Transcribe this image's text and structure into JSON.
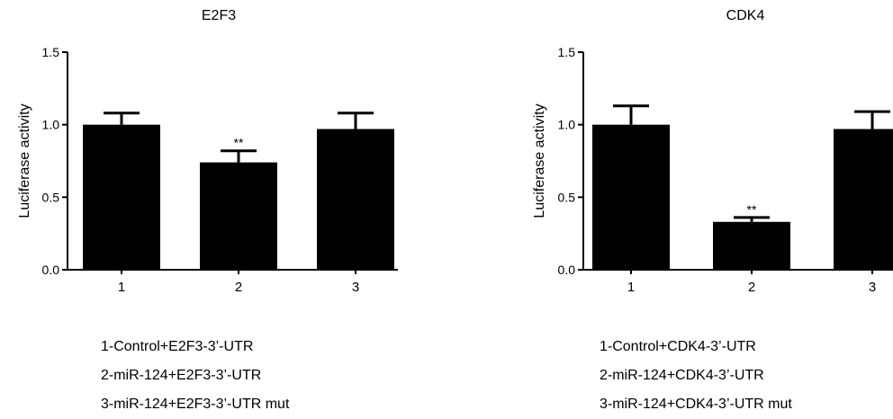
{
  "chart_data": [
    {
      "type": "bar",
      "title": "E2F3",
      "ylabel": "Luciferase activity",
      "xlabel": "",
      "ylim": [
        0,
        1.5
      ],
      "yticks": [
        "0.0",
        "0.5",
        "1.0",
        "1.5"
      ],
      "categories": [
        "1",
        "2",
        "3"
      ],
      "values": [
        1.0,
        0.74,
        0.97
      ],
      "errors": [
        0.08,
        0.08,
        0.11
      ],
      "annotations": [
        "",
        "**",
        ""
      ],
      "bar_color": "#000000",
      "legend": [
        "1-Control+E2F3-3’-UTR",
        "2-miR-124+E2F3-3’-UTR",
        "3-miR-124+E2F3-3’-UTR mut"
      ]
    },
    {
      "type": "bar",
      "title": "CDK4",
      "ylabel": "Luciferase activity",
      "xlabel": "",
      "ylim": [
        0,
        1.5
      ],
      "yticks": [
        "0.0",
        "0.5",
        "1.0",
        "1.5"
      ],
      "categories": [
        "1",
        "2",
        "3"
      ],
      "values": [
        1.0,
        0.33,
        0.97
      ],
      "errors": [
        0.13,
        0.03,
        0.12
      ],
      "annotations": [
        "",
        "**",
        ""
      ],
      "bar_color": "#000000",
      "legend": [
        "1-Control+CDK4-3’-UTR",
        "2-miR-124+CDK4-3’-UTR",
        "3-miR-124+CDK4-3’-UTR mut"
      ]
    }
  ]
}
